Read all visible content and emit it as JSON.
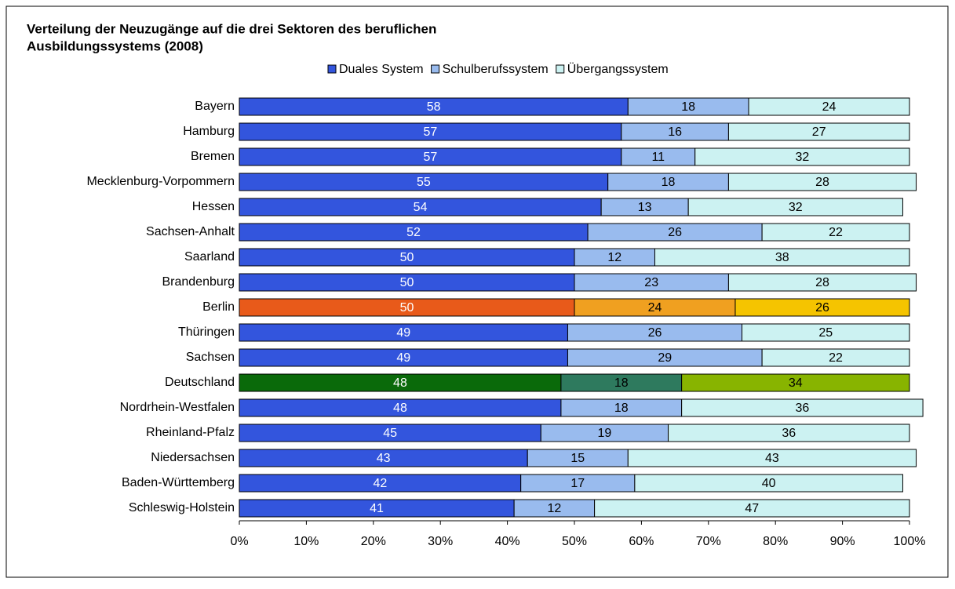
{
  "chart_data": {
    "type": "stacked_barh",
    "title": "Verteilung der Neuzugänge auf die drei Sektoren des beruflichen",
    "title_line2": "Ausbildungssystems (2008)",
    "categories": [
      "Bayern",
      "Hamburg",
      "Bremen",
      "Mecklenburg-Vorpommern",
      "Hessen",
      "Sachsen-Anhalt",
      "Saarland",
      "Brandenburg",
      "Berlin",
      "Thüringen",
      "Sachsen",
      "Deutschland",
      "Nordrhein-Westfalen",
      "Rheinland-Pfalz",
      "Niedersachsen",
      "Baden-Württemberg",
      "Schleswig-Holstein"
    ],
    "series": [
      {
        "name": "Duales System",
        "color": "#3355dd",
        "values": [
          58,
          57,
          57,
          55,
          54,
          52,
          50,
          50,
          50,
          49,
          49,
          48,
          48,
          45,
          43,
          42,
          41
        ],
        "colors": [
          "#3355dd",
          "#3355dd",
          "#3355dd",
          "#3355dd",
          "#3355dd",
          "#3355dd",
          "#3355dd",
          "#3355dd",
          "#e85a1a",
          "#3355dd",
          "#3355dd",
          "#0a6a0a",
          "#3355dd",
          "#3355dd",
          "#3355dd",
          "#3355dd",
          "#3355dd"
        ]
      },
      {
        "name": "Schulberufssystem",
        "color": "#99bbee",
        "values": [
          18,
          16,
          11,
          18,
          13,
          26,
          12,
          23,
          24,
          26,
          29,
          18,
          18,
          19,
          15,
          17,
          12
        ],
        "colors": [
          "#99bbee",
          "#99bbee",
          "#99bbee",
          "#99bbee",
          "#99bbee",
          "#99bbee",
          "#99bbee",
          "#99bbee",
          "#f0a020",
          "#99bbee",
          "#99bbee",
          "#2e7a5e",
          "#99bbee",
          "#99bbee",
          "#99bbee",
          "#99bbee",
          "#99bbee"
        ]
      },
      {
        "name": "Übergangssystem",
        "color": "#ccf2f2",
        "values": [
          24,
          27,
          32,
          28,
          32,
          22,
          38,
          28,
          26,
          25,
          22,
          34,
          36,
          36,
          43,
          40,
          47
        ],
        "colors": [
          "#ccf2f2",
          "#ccf2f2",
          "#ccf2f2",
          "#ccf2f2",
          "#ccf2f2",
          "#ccf2f2",
          "#ccf2f2",
          "#ccf2f2",
          "#f5c400",
          "#ccf2f2",
          "#ccf2f2",
          "#88b400",
          "#ccf2f2",
          "#ccf2f2",
          "#ccf2f2",
          "#ccf2f2",
          "#ccf2f2"
        ]
      }
    ],
    "label_colors": [
      "#ffffff",
      "#000000",
      "#000000"
    ],
    "xlim": [
      0,
      100
    ],
    "xticks": [
      {
        "value": 0,
        "label": "0%"
      },
      {
        "value": 10,
        "label": "10%"
      },
      {
        "value": 20,
        "label": "20%"
      },
      {
        "value": 30,
        "label": "30%"
      },
      {
        "value": 40,
        "label": "40%"
      },
      {
        "value": 50,
        "label": "50%"
      },
      {
        "value": 60,
        "label": "60%"
      },
      {
        "value": 70,
        "label": "70%"
      },
      {
        "value": 80,
        "label": "80%"
      },
      {
        "value": 90,
        "label": "90%"
      },
      {
        "value": 100,
        "label": "100%"
      }
    ],
    "legend": "top"
  }
}
